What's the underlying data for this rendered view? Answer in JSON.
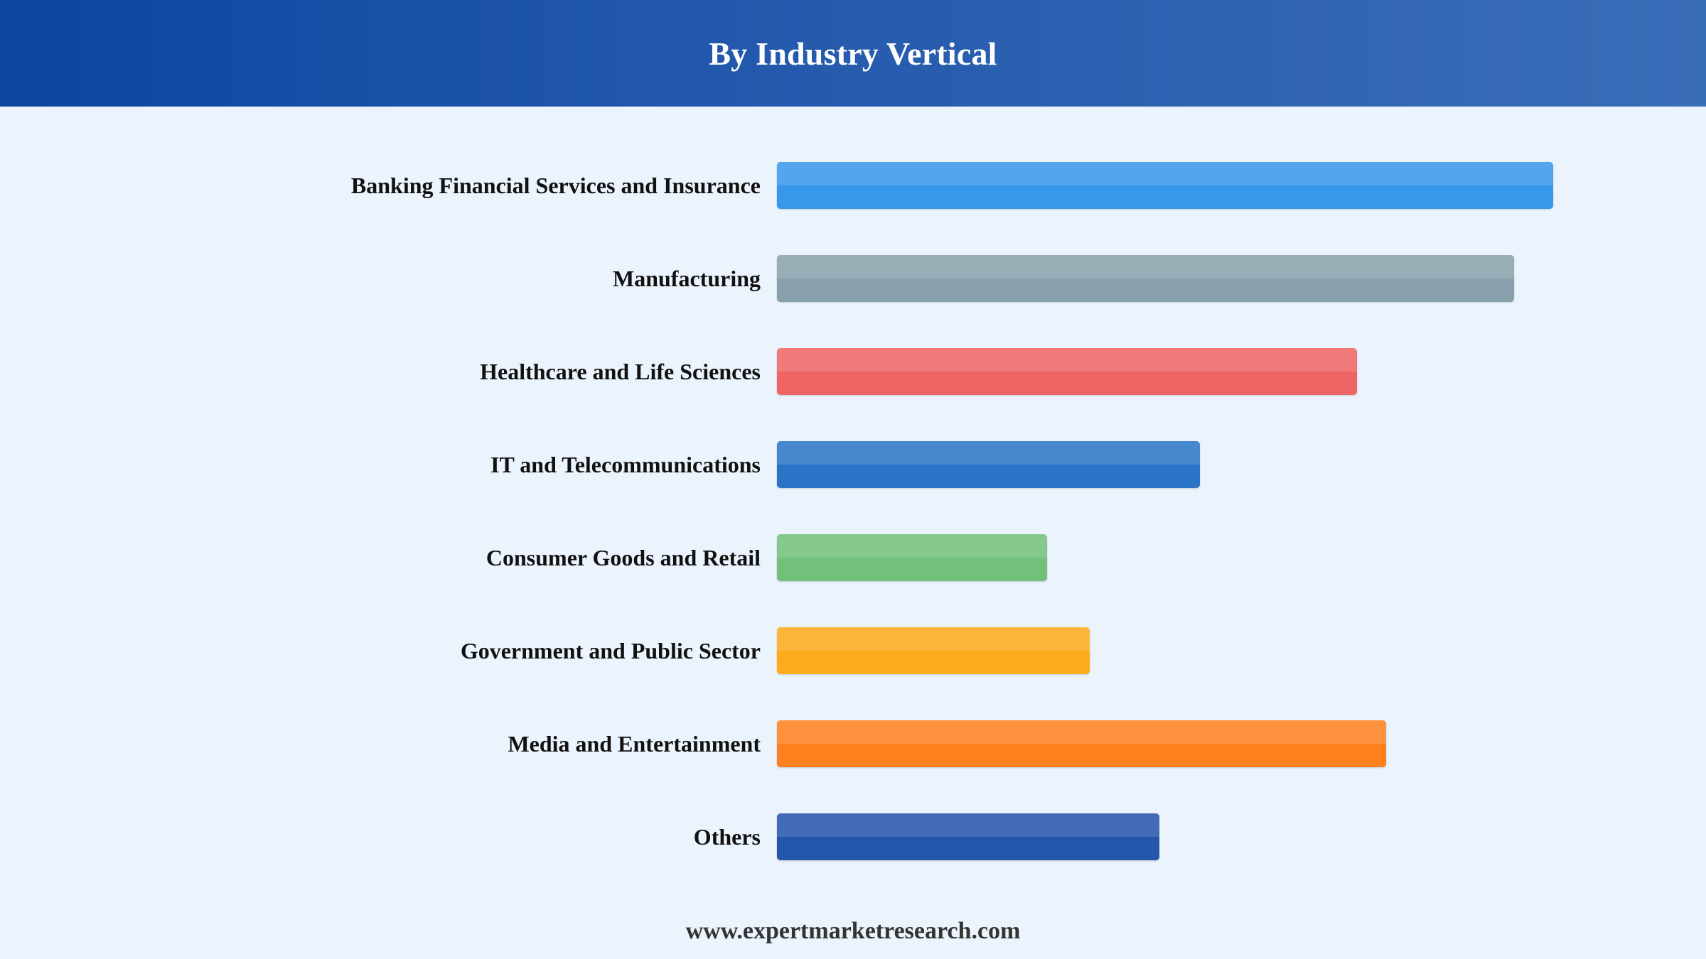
{
  "header": {
    "title": "By Industry Vertical"
  },
  "chart_data": {
    "type": "bar",
    "orientation": "horizontal",
    "title": "By Industry Vertical",
    "xlabel": "",
    "ylabel": "",
    "grid": false,
    "categories": [
      "Banking Financial Services and Insurance",
      "Manufacturing",
      "Healthcare and Life Sciences",
      "IT and Telecommunications",
      "Consumer Goods and Retail",
      "Government and Public Sector",
      "Media and Entertainment",
      "Others"
    ],
    "values": [
      100,
      95,
      74.7,
      54.5,
      34.8,
      40.3,
      78.5,
      49.3
    ],
    "xlim": [
      0,
      100
    ],
    "colors": [
      "#3797ea",
      "#87a0ab",
      "#ef6464",
      "#2b73c6",
      "#72c17a",
      "#fdaa1b",
      "#fe7f1e",
      "#2456ab"
    ]
  },
  "footer": {
    "source": "www.expertmarketresearch.com"
  }
}
